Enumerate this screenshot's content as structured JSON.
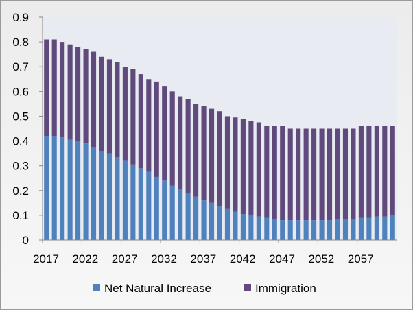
{
  "chart_data": {
    "type": "bar",
    "stacked": true,
    "title": "",
    "xlabel": "",
    "ylabel": "",
    "ylim": [
      0,
      0.9
    ],
    "yticks": [
      0,
      0.1,
      0.2,
      0.3,
      0.4,
      0.5,
      0.6,
      0.7,
      0.8,
      0.9
    ],
    "ytick_labels": [
      "0",
      "0.1",
      "0.2",
      "0.3",
      "0.4",
      "0.5",
      "0.6",
      "0.7",
      "0.8",
      "0.9"
    ],
    "categories": [
      2017,
      2018,
      2019,
      2020,
      2021,
      2022,
      2023,
      2024,
      2025,
      2026,
      2027,
      2028,
      2029,
      2030,
      2031,
      2032,
      2033,
      2034,
      2035,
      2036,
      2037,
      2038,
      2039,
      2040,
      2041,
      2042,
      2043,
      2044,
      2045,
      2046,
      2047,
      2048,
      2049,
      2050,
      2051,
      2052,
      2053,
      2054,
      2055,
      2056,
      2057,
      2058,
      2059,
      2060,
      2061
    ],
    "xtick_labels": [
      "2017",
      "2022",
      "2027",
      "2032",
      "2037",
      "2042",
      "2047",
      "2052",
      "2057"
    ],
    "series": [
      {
        "name": "Net Natural Increase",
        "color": "#4f81bd",
        "values": [
          0.42,
          0.42,
          0.415,
          0.405,
          0.4,
          0.39,
          0.375,
          0.36,
          0.35,
          0.335,
          0.32,
          0.305,
          0.29,
          0.275,
          0.255,
          0.24,
          0.22,
          0.205,
          0.19,
          0.175,
          0.16,
          0.15,
          0.135,
          0.125,
          0.115,
          0.105,
          0.1,
          0.095,
          0.09,
          0.085,
          0.08,
          0.08,
          0.08,
          0.08,
          0.08,
          0.08,
          0.08,
          0.085,
          0.085,
          0.085,
          0.09,
          0.09,
          0.095,
          0.095,
          0.1
        ]
      },
      {
        "name": "Immigration",
        "color": "#604a7b",
        "values": [
          0.39,
          0.39,
          0.385,
          0.385,
          0.38,
          0.38,
          0.385,
          0.38,
          0.38,
          0.385,
          0.38,
          0.385,
          0.38,
          0.375,
          0.385,
          0.38,
          0.38,
          0.375,
          0.38,
          0.375,
          0.38,
          0.38,
          0.385,
          0.375,
          0.38,
          0.385,
          0.38,
          0.38,
          0.37,
          0.375,
          0.38,
          0.37,
          0.37,
          0.37,
          0.37,
          0.37,
          0.37,
          0.365,
          0.365,
          0.365,
          0.37,
          0.37,
          0.365,
          0.365,
          0.36
        ]
      }
    ],
    "grid": false,
    "legend_position": "bottom"
  }
}
